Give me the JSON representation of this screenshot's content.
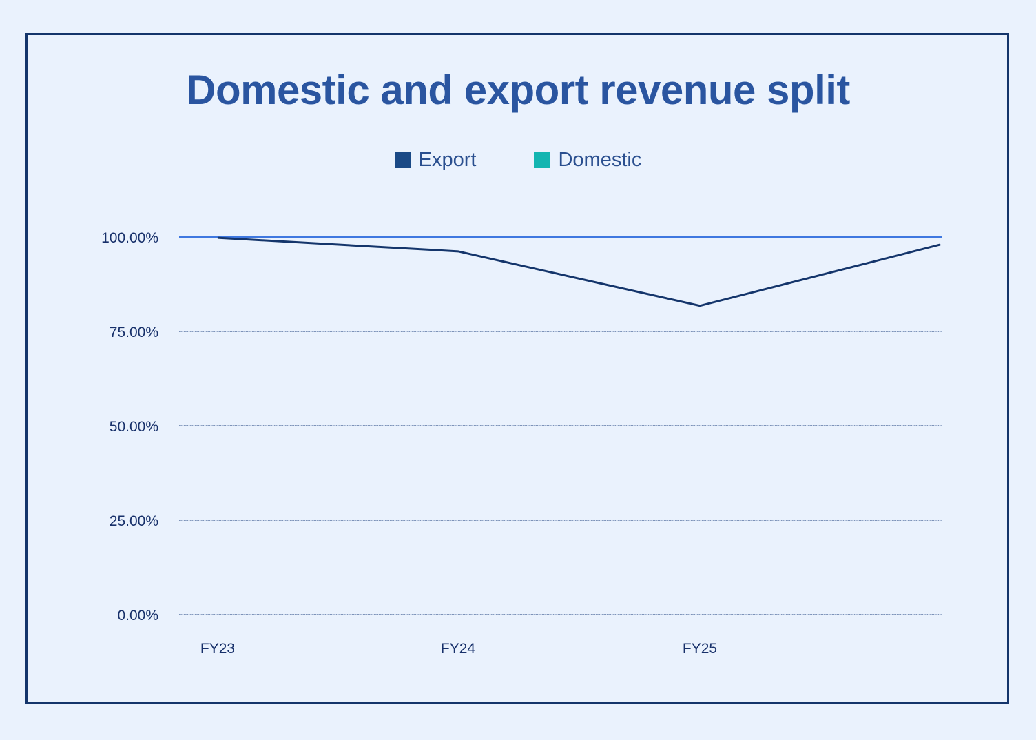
{
  "chart_data": {
    "type": "line",
    "title": "Domestic and export revenue split",
    "xlabel": "",
    "ylabel": "",
    "x": [
      "FY23",
      "FY24",
      "FY25",
      ""
    ],
    "ylim": [
      0,
      100
    ],
    "yticks": [
      "0.00%",
      "25.00%",
      "50.00%",
      "75.00%",
      "100.00%"
    ],
    "ytick_values": [
      0,
      25,
      50,
      75,
      100
    ],
    "grid": true,
    "legend_position": "top-center",
    "series": [
      {
        "name": "Export",
        "color": "#14356b",
        "values": [
          99.8,
          96.2,
          81.8,
          98.0
        ]
      },
      {
        "name": "Domestic",
        "color": "#13b5b1",
        "values": [
          100,
          100,
          100,
          100
        ]
      }
    ],
    "total_line": {
      "color": "#3f78e0",
      "value": 100
    }
  }
}
